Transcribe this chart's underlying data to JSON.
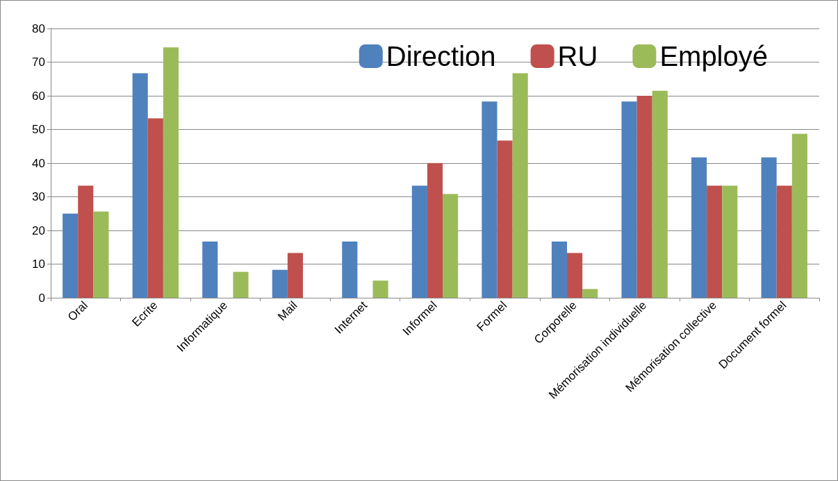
{
  "chart_data": {
    "type": "bar",
    "categories": [
      "Oral",
      "Ecrite",
      "Informatique",
      "Mail",
      "Internet",
      "Informel",
      "Formel",
      "Corporelle",
      "Mémorisation individuelle",
      "Mémorisation collective",
      "Document formel"
    ],
    "series": [
      {
        "name": "Direction",
        "color": "#4f81bd",
        "values": [
          25,
          66.7,
          16.7,
          8.3,
          16.7,
          33.3,
          58.3,
          16.7,
          58.3,
          41.7,
          41.7
        ]
      },
      {
        "name": "RU",
        "color": "#c0504d",
        "values": [
          33.3,
          53.3,
          0,
          13.3,
          0,
          40,
          46.7,
          13.3,
          60,
          33.3,
          33.3
        ]
      },
      {
        "name": "Employé",
        "color": "#9bbb59",
        "values": [
          25.6,
          74.4,
          7.7,
          0,
          5.1,
          30.8,
          66.7,
          2.6,
          61.5,
          33.3,
          48.7
        ]
      }
    ],
    "ylim": [
      0,
      80
    ],
    "yticks": [
      0,
      10,
      20,
      30,
      40,
      50,
      60,
      70,
      80
    ],
    "grid": "y",
    "legend": "top right"
  }
}
